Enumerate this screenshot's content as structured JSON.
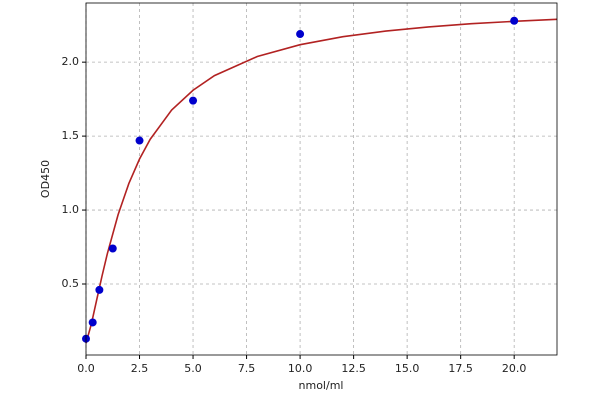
{
  "chart_data": {
    "type": "scatter",
    "xlabel": "nmol/ml",
    "ylabel": "OD450",
    "x": [
      0,
      0.3125,
      0.625,
      1.25,
      2.5,
      5,
      10,
      20
    ],
    "y": [
      0.13,
      0.24,
      0.46,
      0.74,
      1.47,
      1.74,
      2.19,
      2.28
    ],
    "color": "#0000cc",
    "curve": {
      "color": "#b22222",
      "x": [
        0,
        0.25,
        0.5,
        0.75,
        1,
        1.5,
        2,
        2.5,
        3,
        4,
        5,
        6,
        8,
        10,
        12,
        14,
        16,
        18,
        20,
        22
      ],
      "y": [
        0.1,
        0.229,
        0.393,
        0.555,
        0.707,
        0.969,
        1.179,
        1.345,
        1.479,
        1.676,
        1.81,
        1.909,
        2.038,
        2.118,
        2.172,
        2.21,
        2.238,
        2.26,
        2.276,
        2.29
      ]
    },
    "xlim": [
      0,
      22
    ],
    "ylim": [
      0.02,
      2.4
    ],
    "xticks": [
      {
        "value": 0,
        "label": "0.0"
      },
      2.5,
      {
        "value": 5,
        "label": "5.0"
      },
      7.5,
      {
        "value": 10,
        "label": "10.0"
      },
      12.5,
      {
        "value": 15,
        "label": "15.0"
      },
      17.5,
      {
        "value": 20,
        "label": "20.0"
      }
    ],
    "yticks": [
      0.5,
      {
        "value": 1,
        "label": "1.0"
      },
      1.5,
      {
        "value": 2,
        "label": "2.0"
      }
    ],
    "grid": true
  }
}
